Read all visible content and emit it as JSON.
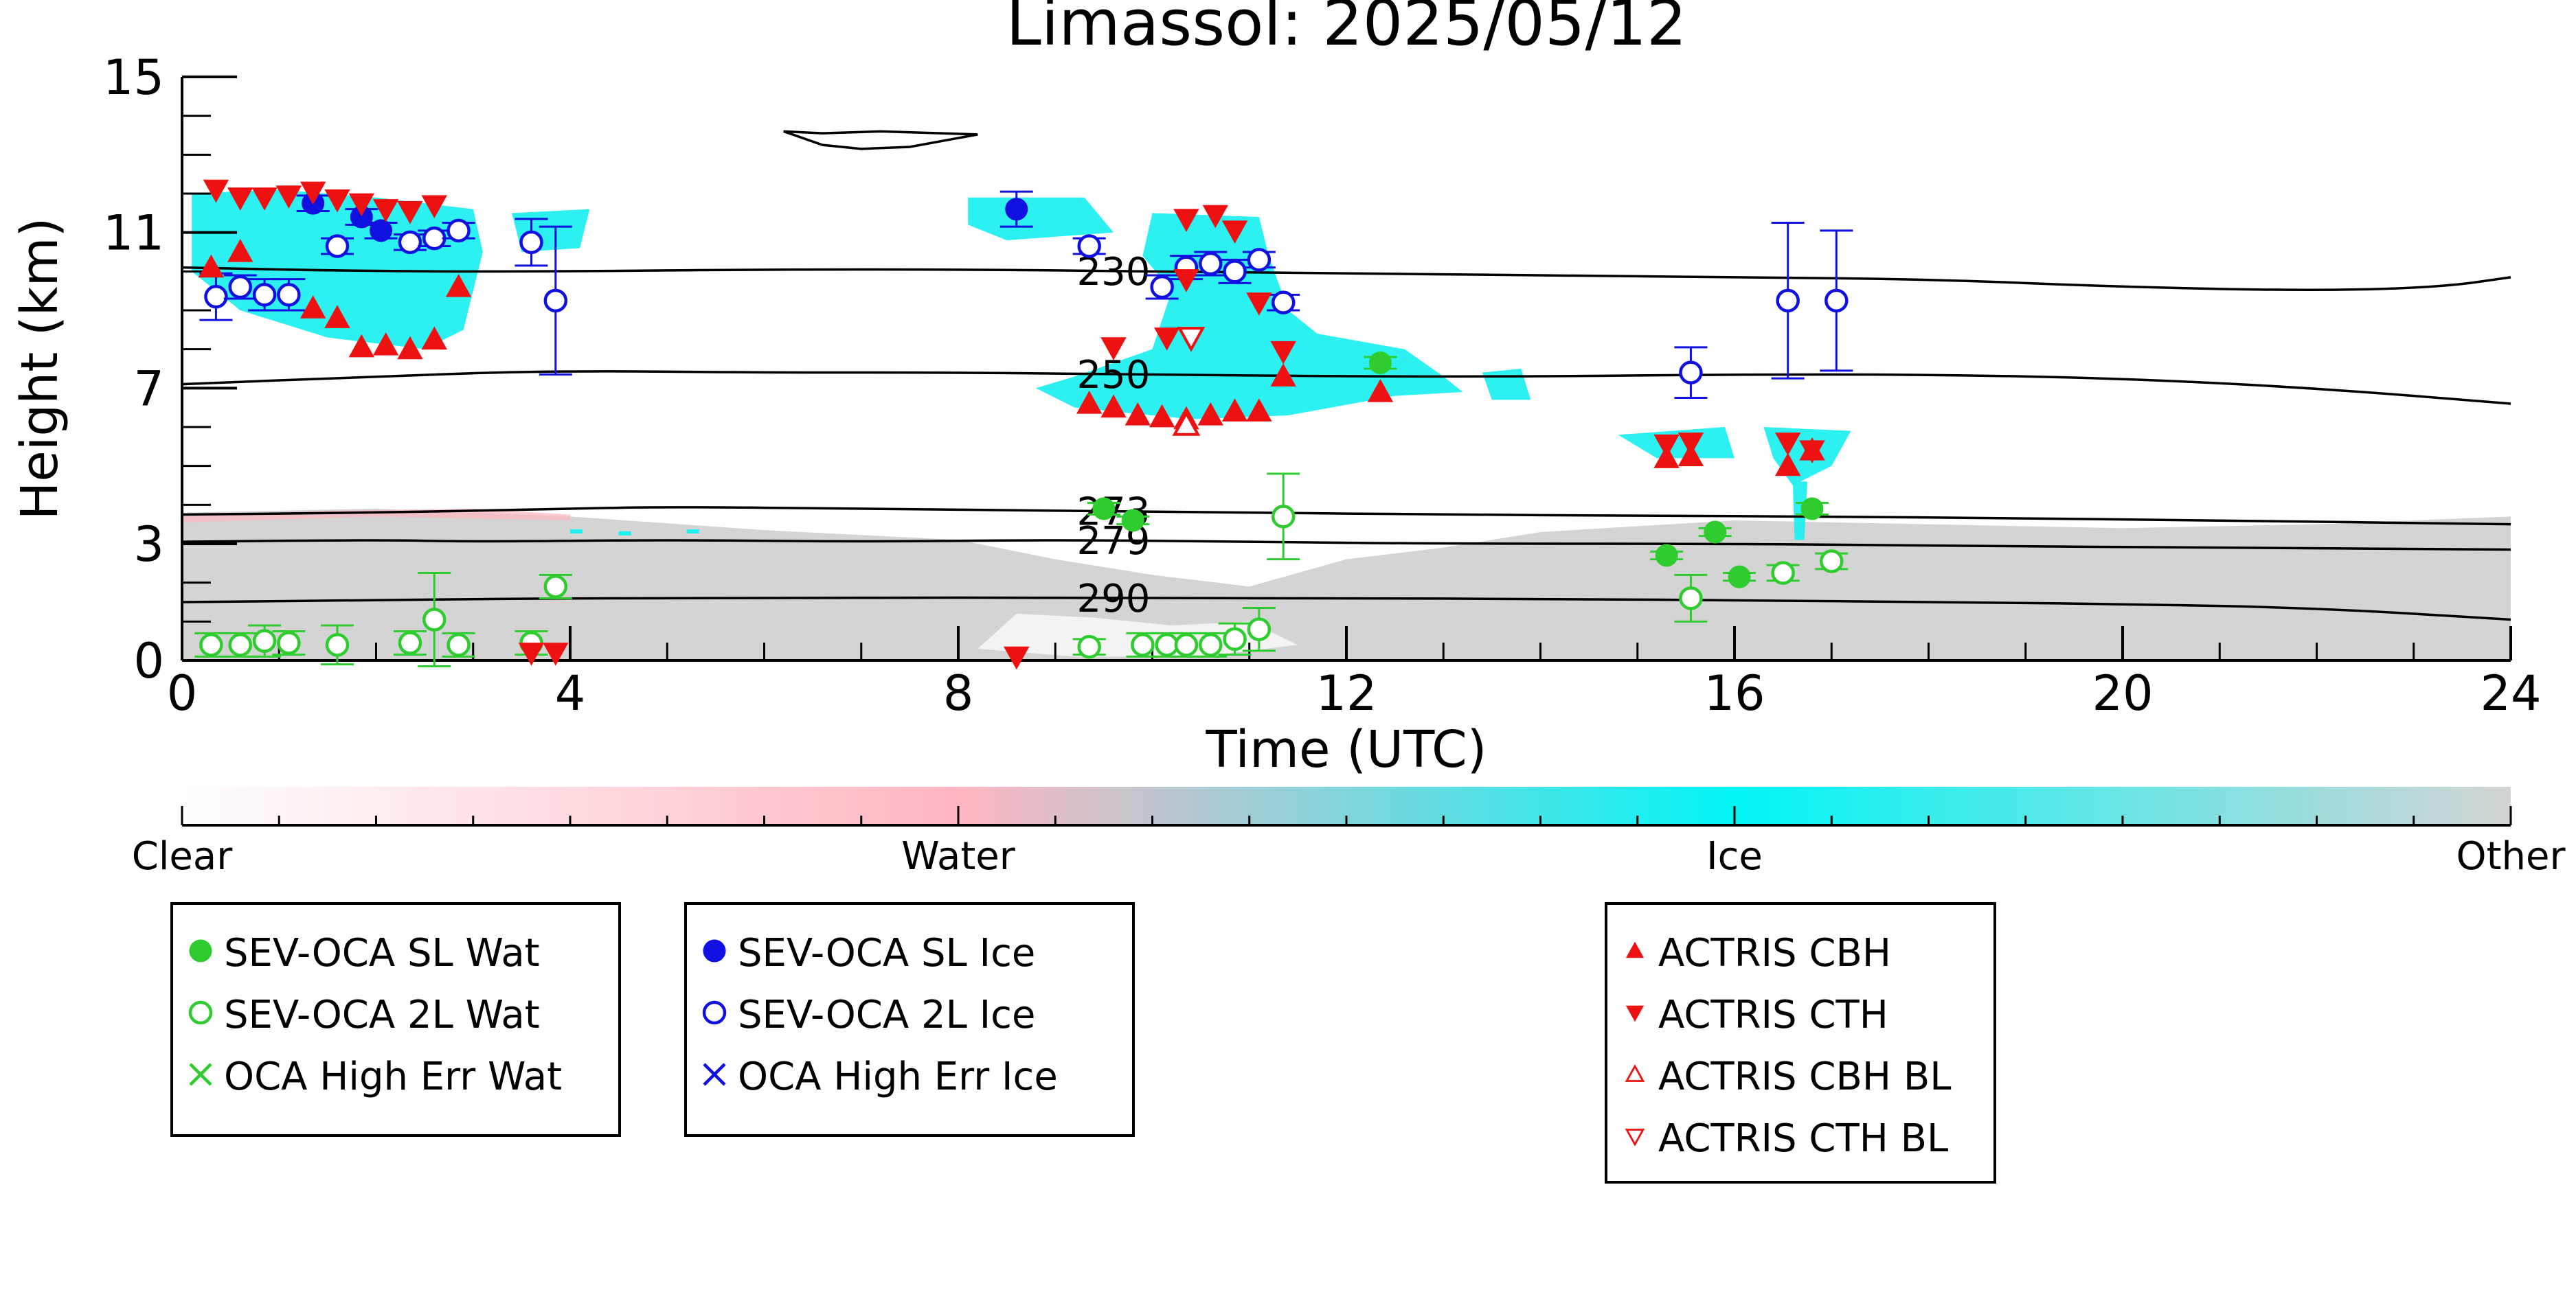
{
  "chart_data": {
    "type": "scatter",
    "title": "Limassol: 2025/05/12",
    "xlabel": "Time (UTC)",
    "ylabel": "Height (km)",
    "xlim": [
      0,
      24
    ],
    "ylim": [
      0,
      15
    ],
    "x_ticks": [
      0,
      4,
      8,
      12,
      16,
      20,
      24
    ],
    "y_ticks": [
      0,
      3,
      7,
      11,
      15
    ],
    "grid": false,
    "colors": {
      "water": "#2ecc2e",
      "ice": "#1010e0",
      "actris": "#ee1111",
      "cloud_ice": "#22f0f0",
      "cloud_water": "#ffb6c1",
      "other": "#d4d4d4",
      "contour": "#000000"
    },
    "colorbar": {
      "labels": [
        "Clear",
        "Water",
        "Ice",
        "Other"
      ],
      "stops": [
        "#ffffff",
        "#ffb6c1",
        "#00f5f5",
        "#d4d4d4"
      ]
    },
    "contours": [
      {
        "label": "230",
        "label_x": 9.6,
        "points": [
          [
            0,
            10.1
          ],
          [
            2,
            10.0
          ],
          [
            4,
            10.0
          ],
          [
            6,
            10.05
          ],
          [
            8,
            10.05
          ],
          [
            10,
            10.0
          ],
          [
            12,
            9.95
          ],
          [
            14,
            9.9
          ],
          [
            16,
            9.85
          ],
          [
            18,
            9.8
          ],
          [
            20,
            9.6
          ],
          [
            22,
            9.5
          ],
          [
            23.3,
            9.6
          ],
          [
            24,
            9.85
          ]
        ]
      },
      {
        "label": "250",
        "label_x": 9.6,
        "points": [
          [
            0,
            7.1
          ],
          [
            2,
            7.3
          ],
          [
            3.8,
            7.45
          ],
          [
            6,
            7.4
          ],
          [
            8,
            7.4
          ],
          [
            10,
            7.35
          ],
          [
            12,
            7.3
          ],
          [
            14,
            7.3
          ],
          [
            16,
            7.35
          ],
          [
            18,
            7.35
          ],
          [
            20,
            7.25
          ],
          [
            22,
            7.0
          ],
          [
            24,
            6.6
          ]
        ]
      },
      {
        "label": "273",
        "label_x": 9.6,
        "points": [
          [
            0,
            3.75
          ],
          [
            2,
            3.8
          ],
          [
            4,
            3.9
          ],
          [
            5,
            3.95
          ],
          [
            7,
            3.9
          ],
          [
            9,
            3.85
          ],
          [
            11,
            3.8
          ],
          [
            13,
            3.75
          ],
          [
            15,
            3.72
          ],
          [
            17,
            3.7
          ],
          [
            19,
            3.65
          ],
          [
            21,
            3.6
          ],
          [
            24,
            3.5
          ]
        ]
      },
      {
        "label": "279",
        "label_x": 9.6,
        "points": [
          [
            0,
            3.05
          ],
          [
            2,
            3.1
          ],
          [
            3,
            3.05
          ],
          [
            5,
            3.1
          ],
          [
            7,
            3.05
          ],
          [
            9,
            3.1
          ],
          [
            11,
            3.05
          ],
          [
            13,
            3.0
          ],
          [
            16,
            3.0
          ],
          [
            18,
            2.95
          ],
          [
            21,
            2.9
          ],
          [
            24,
            2.85
          ]
        ]
      },
      {
        "label": "290",
        "label_x": 9.6,
        "points": [
          [
            0,
            1.5
          ],
          [
            2,
            1.55
          ],
          [
            4,
            1.6
          ],
          [
            6,
            1.6
          ],
          [
            8,
            1.62
          ],
          [
            10,
            1.6
          ],
          [
            12,
            1.6
          ],
          [
            14,
            1.58
          ],
          [
            16,
            1.55
          ],
          [
            18,
            1.5
          ],
          [
            20,
            1.45
          ],
          [
            22,
            1.35
          ],
          [
            24,
            1.05
          ]
        ]
      },
      {
        "label": "",
        "label_x": null,
        "points": [
          [
            6.2,
            13.6
          ],
          [
            6.6,
            13.55
          ],
          [
            7.2,
            13.6
          ],
          [
            8.2,
            13.52
          ],
          [
            7.5,
            13.2
          ],
          [
            7,
            13.15
          ],
          [
            6.6,
            13.25
          ],
          [
            6.2,
            13.6
          ]
        ]
      }
    ],
    "series": [
      {
        "name": "SEV-OCA SL Wat",
        "marker": "circle-filled",
        "color": "#2ecc2e",
        "points": [
          {
            "x": 9.5,
            "y": 3.9,
            "err": 0.15
          },
          {
            "x": 9.8,
            "y": 3.6,
            "err": 0.1
          },
          {
            "x": 12.35,
            "y": 7.65,
            "err": 0.15
          },
          {
            "x": 15.3,
            "y": 2.7,
            "err": 0.1
          },
          {
            "x": 15.8,
            "y": 3.3,
            "err": 0.1
          },
          {
            "x": 16.05,
            "y": 2.15,
            "err": 0.1
          },
          {
            "x": 16.8,
            "y": 3.9,
            "err": 0.15
          }
        ]
      },
      {
        "name": "SEV-OCA 2L Wat",
        "marker": "circle-open",
        "color": "#2ecc2e",
        "points": [
          {
            "x": 0.3,
            "y": 0.4,
            "err": 0.3
          },
          {
            "x": 0.6,
            "y": 0.4,
            "err": 0.3
          },
          {
            "x": 0.85,
            "y": 0.5,
            "err": 0.4
          },
          {
            "x": 1.1,
            "y": 0.45,
            "err": 0.3
          },
          {
            "x": 1.6,
            "y": 0.4,
            "err": 0.5
          },
          {
            "x": 2.35,
            "y": 0.45,
            "err": 0.3
          },
          {
            "x": 2.6,
            "y": 1.05,
            "err": 1.2
          },
          {
            "x": 2.85,
            "y": 0.4,
            "err": 0.3
          },
          {
            "x": 3.6,
            "y": 0.45,
            "err": 0.3
          },
          {
            "x": 3.85,
            "y": 1.9,
            "err": 0.3
          },
          {
            "x": 9.35,
            "y": 0.35,
            "err": 0.2
          },
          {
            "x": 9.9,
            "y": 0.4,
            "err": 0.3
          },
          {
            "x": 10.15,
            "y": 0.4,
            "err": 0.3
          },
          {
            "x": 10.35,
            "y": 0.4,
            "err": 0.3
          },
          {
            "x": 10.6,
            "y": 0.4,
            "err": 0.3
          },
          {
            "x": 10.85,
            "y": 0.55,
            "err": 0.4
          },
          {
            "x": 11.1,
            "y": 0.8,
            "err": 0.55
          },
          {
            "x": 11.35,
            "y": 3.7,
            "err": 1.1
          },
          {
            "x": 15.55,
            "y": 1.6,
            "err": 0.6
          },
          {
            "x": 16.5,
            "y": 2.25,
            "err": 0.2
          },
          {
            "x": 17.0,
            "y": 2.55,
            "err": 0.2
          }
        ]
      },
      {
        "name": "SEV-OCA SL Ice",
        "marker": "circle-filled",
        "color": "#1010e0",
        "points": [
          {
            "x": 1.35,
            "y": 11.75,
            "err": 0.2
          },
          {
            "x": 1.85,
            "y": 11.4,
            "err": 0.2
          },
          {
            "x": 2.05,
            "y": 11.05,
            "err": 0.2
          },
          {
            "x": 8.6,
            "y": 11.6,
            "err": 0.45
          }
        ]
      },
      {
        "name": "SEV-OCA 2L Ice",
        "marker": "circle-open",
        "color": "#1010e0",
        "points": [
          {
            "x": 0.35,
            "y": 9.35,
            "err": 0.6
          },
          {
            "x": 0.6,
            "y": 9.6,
            "err": 0.3
          },
          {
            "x": 0.85,
            "y": 9.4,
            "err": 0.4
          },
          {
            "x": 1.1,
            "y": 9.4,
            "err": 0.4
          },
          {
            "x": 1.6,
            "y": 10.65,
            "err": 0.2
          },
          {
            "x": 2.35,
            "y": 10.75,
            "err": 0.2
          },
          {
            "x": 2.6,
            "y": 10.85,
            "err": 0.2
          },
          {
            "x": 2.85,
            "y": 11.05,
            "err": 0.2
          },
          {
            "x": 3.6,
            "y": 10.75,
            "err": 0.6
          },
          {
            "x": 3.85,
            "y": 9.25,
            "err": 1.9
          },
          {
            "x": 9.35,
            "y": 10.65,
            "err": 0.2
          },
          {
            "x": 10.1,
            "y": 9.6,
            "err": 0.3
          },
          {
            "x": 10.35,
            "y": 10.1,
            "err": 0.3
          },
          {
            "x": 10.6,
            "y": 10.2,
            "err": 0.3
          },
          {
            "x": 10.85,
            "y": 10.0,
            "err": 0.3
          },
          {
            "x": 11.1,
            "y": 10.3,
            "err": 0.2
          },
          {
            "x": 11.35,
            "y": 9.2,
            "err": 0.2
          },
          {
            "x": 15.55,
            "y": 7.4,
            "err": 0.65
          },
          {
            "x": 16.55,
            "y": 9.25,
            "err": 2.0
          },
          {
            "x": 17.05,
            "y": 9.25,
            "err": 1.8
          }
        ]
      },
      {
        "name": "OCA High Err Wat",
        "marker": "x",
        "color": "#2ecc2e",
        "points": []
      },
      {
        "name": "OCA High Err Ice",
        "marker": "x",
        "color": "#1010e0",
        "points": []
      },
      {
        "name": "ACTRIS CBH",
        "marker": "triangle-up",
        "color": "#ee1111",
        "points": [
          {
            "x": 0.3,
            "y": 10.1
          },
          {
            "x": 0.6,
            "y": 10.5
          },
          {
            "x": 1.35,
            "y": 9.05
          },
          {
            "x": 1.6,
            "y": 8.8
          },
          {
            "x": 1.85,
            "y": 8.05
          },
          {
            "x": 2.1,
            "y": 8.1
          },
          {
            "x": 2.35,
            "y": 8.0
          },
          {
            "x": 2.6,
            "y": 8.25
          },
          {
            "x": 2.85,
            "y": 9.6
          },
          {
            "x": 9.35,
            "y": 6.6
          },
          {
            "x": 9.6,
            "y": 6.5
          },
          {
            "x": 9.85,
            "y": 6.3
          },
          {
            "x": 10.1,
            "y": 6.25
          },
          {
            "x": 10.35,
            "y": 6.2
          },
          {
            "x": 10.6,
            "y": 6.3
          },
          {
            "x": 10.85,
            "y": 6.4
          },
          {
            "x": 11.1,
            "y": 6.4
          },
          {
            "x": 11.35,
            "y": 7.3
          },
          {
            "x": 12.35,
            "y": 6.9
          },
          {
            "x": 15.3,
            "y": 5.2
          },
          {
            "x": 15.55,
            "y": 5.25
          },
          {
            "x": 16.55,
            "y": 5.0
          },
          {
            "x": 16.8,
            "y": 5.4
          }
        ]
      },
      {
        "name": "ACTRIS CTH",
        "marker": "triangle-down",
        "color": "#ee1111",
        "points": [
          {
            "x": 0.35,
            "y": 12.1
          },
          {
            "x": 0.6,
            "y": 11.9
          },
          {
            "x": 0.85,
            "y": 11.9
          },
          {
            "x": 1.1,
            "y": 11.95
          },
          {
            "x": 1.35,
            "y": 12.05
          },
          {
            "x": 1.6,
            "y": 11.85
          },
          {
            "x": 1.85,
            "y": 11.75
          },
          {
            "x": 2.1,
            "y": 11.6
          },
          {
            "x": 2.35,
            "y": 11.55
          },
          {
            "x": 2.6,
            "y": 11.7
          },
          {
            "x": 3.6,
            "y": 0.2
          },
          {
            "x": 3.85,
            "y": 0.2
          },
          {
            "x": 8.6,
            "y": 0.1
          },
          {
            "x": 9.6,
            "y": 8.05
          },
          {
            "x": 10.15,
            "y": 8.3
          },
          {
            "x": 10.35,
            "y": 9.8
          },
          {
            "x": 10.35,
            "y": 11.35
          },
          {
            "x": 10.65,
            "y": 11.45
          },
          {
            "x": 10.85,
            "y": 11.05
          },
          {
            "x": 11.1,
            "y": 9.2
          },
          {
            "x": 11.35,
            "y": 7.95
          },
          {
            "x": 15.3,
            "y": 5.55
          },
          {
            "x": 15.55,
            "y": 5.6
          },
          {
            "x": 16.55,
            "y": 5.6
          },
          {
            "x": 16.8,
            "y": 5.4
          }
        ]
      },
      {
        "name": "ACTRIS CBH BL",
        "marker": "triangle-up-open",
        "color": "#ee1111",
        "points": [
          {
            "x": 10.35,
            "y": 6.05
          }
        ]
      },
      {
        "name": "ACTRIS CTH BL",
        "marker": "triangle-down-open",
        "color": "#ee1111",
        "points": [
          {
            "x": 10.4,
            "y": 8.3
          }
        ]
      }
    ],
    "legend": [
      {
        "group": "left",
        "items": [
          "SEV-OCA SL Wat",
          "SEV-OCA 2L Wat",
          "OCA High Err Wat"
        ]
      },
      {
        "group": "middle",
        "items": [
          "SEV-OCA SL Ice",
          "SEV-OCA 2L Ice",
          "OCA High Err Ice"
        ]
      },
      {
        "group": "right",
        "items": [
          "ACTRIS CBH",
          "ACTRIS CTH",
          "ACTRIS CBH BL",
          "ACTRIS CTH BL"
        ]
      }
    ]
  }
}
